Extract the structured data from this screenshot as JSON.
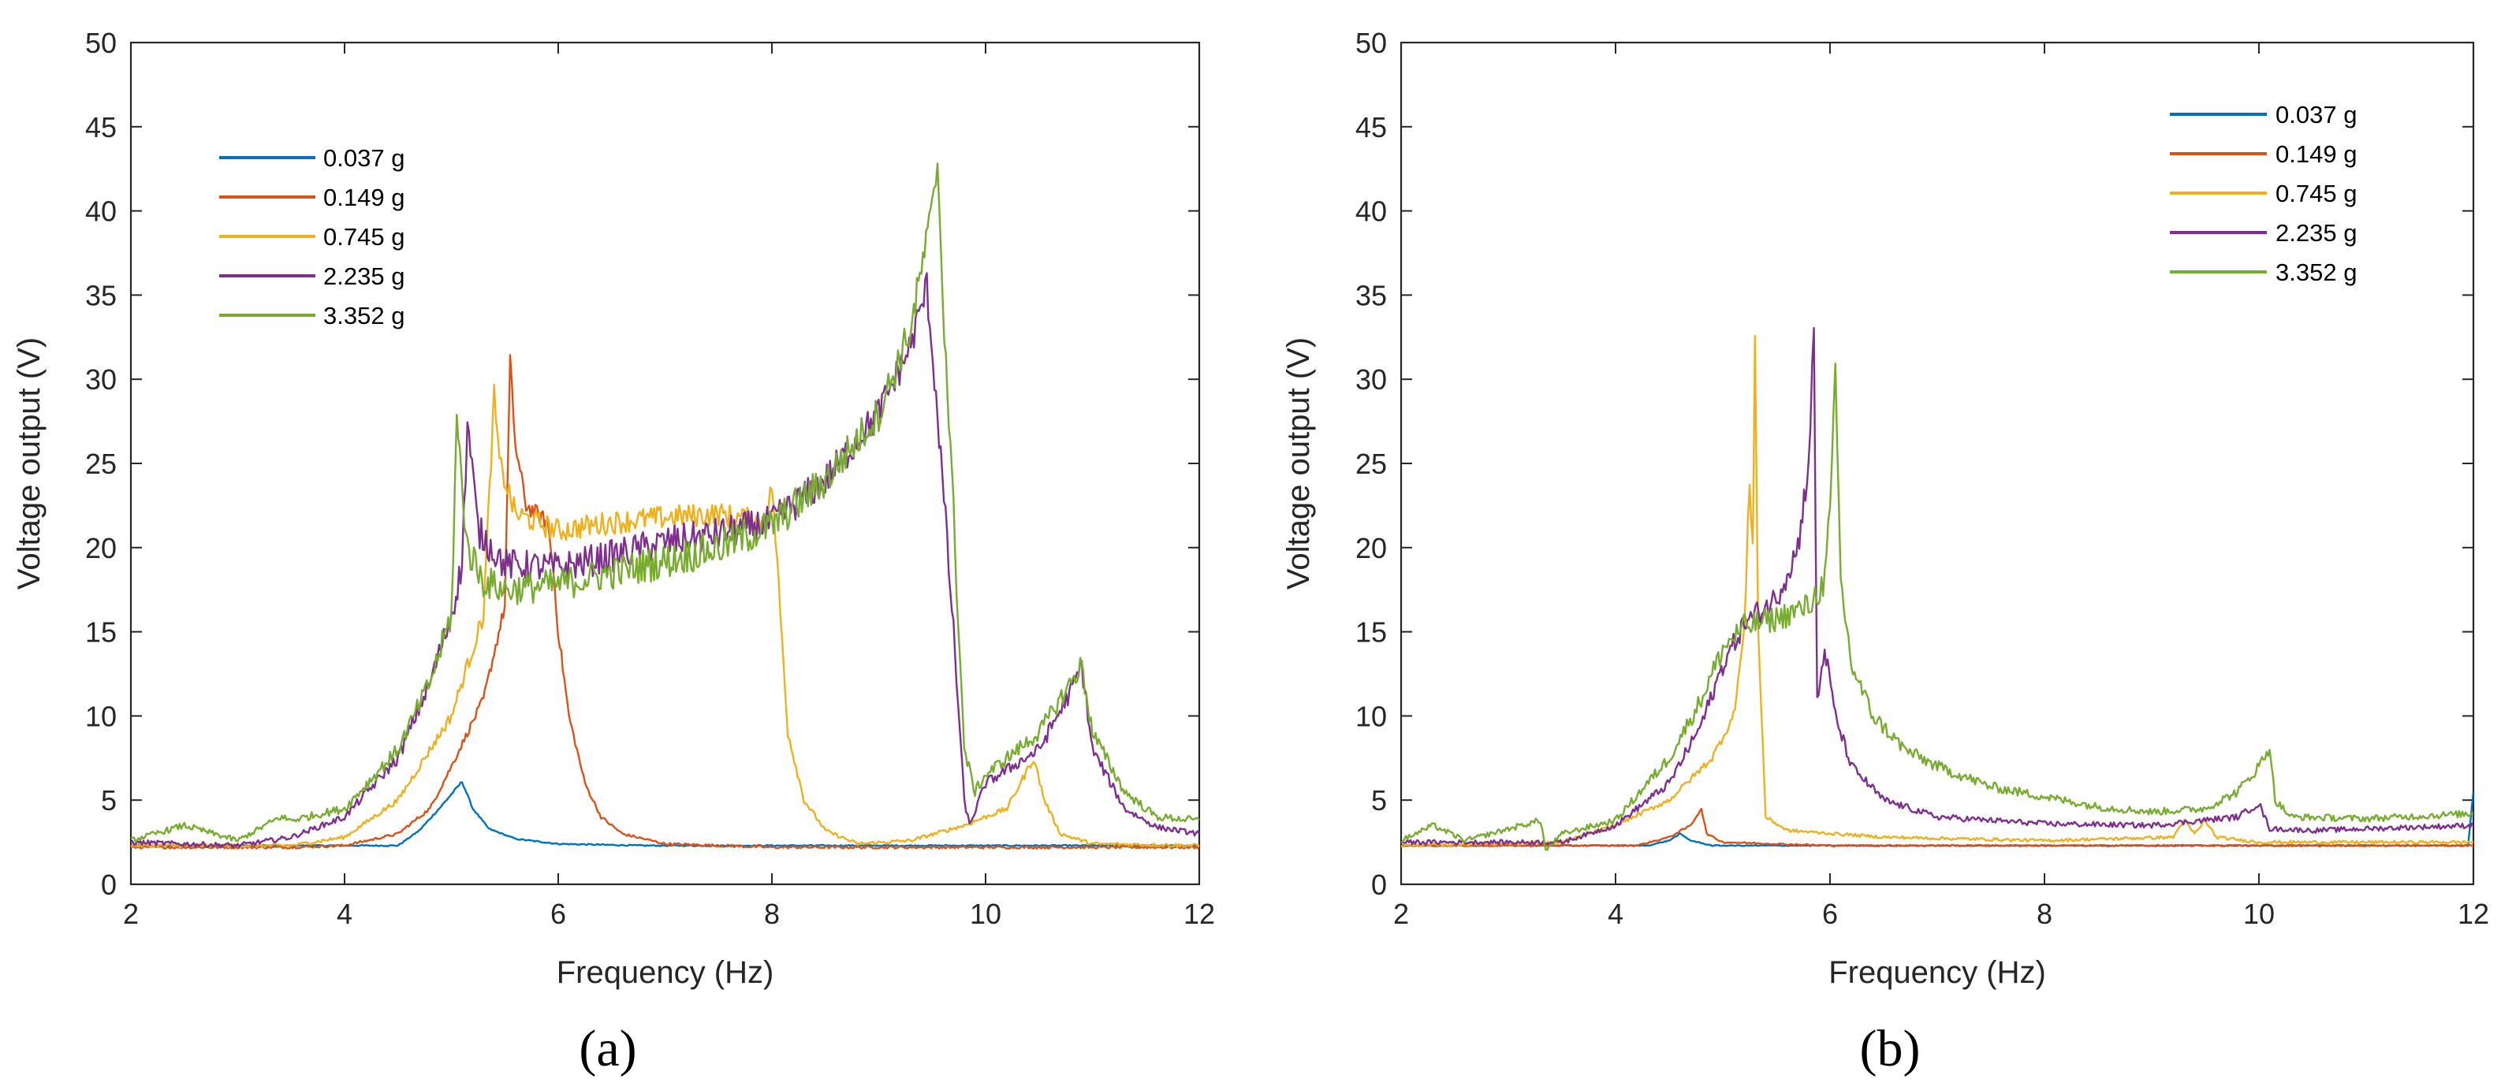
{
  "chart_data": [
    {
      "type": "line",
      "panel_label": "(a)",
      "xlabel": "Frequency (Hz)",
      "ylabel": "Voltage output (V)",
      "xlim": [
        2,
        12
      ],
      "ylim": [
        0,
        50
      ],
      "xticks": [
        2,
        4,
        6,
        8,
        10,
        12
      ],
      "yticks": [
        0,
        5,
        10,
        15,
        20,
        25,
        30,
        35,
        40,
        45,
        50
      ],
      "grid": false,
      "legend_position": "top-left",
      "series": [
        {
          "name": "0.037 g",
          "color": "#0072BD",
          "jitter": 0.25,
          "points": [
            [
              2,
              2.3
            ],
            [
              4.5,
              2.3
            ],
            [
              4.7,
              3.2
            ],
            [
              4.9,
              4.6
            ],
            [
              5.1,
              6.1
            ],
            [
              5.2,
              4.5
            ],
            [
              5.35,
              3.3
            ],
            [
              5.6,
              2.7
            ],
            [
              6.0,
              2.4
            ],
            [
              6.8,
              2.3
            ],
            [
              12,
              2.3
            ]
          ]
        },
        {
          "name": "0.149 g",
          "color": "#D95319",
          "jitter": 0.5,
          "points": [
            [
              2,
              2.2
            ],
            [
              3.5,
              2.2
            ],
            [
              4.0,
              2.3
            ],
            [
              4.5,
              3.0
            ],
            [
              4.8,
              4.5
            ],
            [
              5.0,
              7.0
            ],
            [
              5.3,
              11
            ],
            [
              5.5,
              16.5
            ],
            [
              5.55,
              31
            ],
            [
              5.6,
              26
            ],
            [
              5.7,
              22.5
            ],
            [
              5.8,
              22
            ],
            [
              5.9,
              21.5
            ],
            [
              5.95,
              19
            ],
            [
              6.0,
              15
            ],
            [
              6.1,
              10
            ],
            [
              6.25,
              6.0
            ],
            [
              6.4,
              4.0
            ],
            [
              6.6,
              3.0
            ],
            [
              7.0,
              2.4
            ],
            [
              8,
              2.2
            ],
            [
              12,
              2.2
            ]
          ]
        },
        {
          "name": "0.745 g",
          "color": "#EDB120",
          "jitter": 0.7,
          "points": [
            [
              2,
              2.3
            ],
            [
              3.5,
              2.3
            ],
            [
              4.0,
              2.8
            ],
            [
              4.5,
              5.0
            ],
            [
              5.0,
              10
            ],
            [
              5.3,
              16
            ],
            [
              5.4,
              29
            ],
            [
              5.45,
              25
            ],
            [
              5.6,
              22
            ],
            [
              6.0,
              21
            ],
            [
              6.5,
              21.5
            ],
            [
              7.0,
              21.8
            ],
            [
              7.5,
              22
            ],
            [
              7.95,
              21.5
            ],
            [
              8.0,
              23.8
            ],
            [
              8.05,
              19
            ],
            [
              8.15,
              9
            ],
            [
              8.3,
              5.0
            ],
            [
              8.5,
              3.2
            ],
            [
              8.8,
              2.4
            ],
            [
              9.3,
              2.6
            ],
            [
              9.8,
              3.5
            ],
            [
              10.2,
              4.5
            ],
            [
              10.45,
              7.5
            ],
            [
              10.55,
              5.0
            ],
            [
              10.7,
              3.0
            ],
            [
              11,
              2.4
            ],
            [
              12,
              2.3
            ]
          ]
        },
        {
          "name": "2.235 g",
          "color": "#7E2F8E",
          "jitter": 1.0,
          "points": [
            [
              2,
              2.5
            ],
            [
              3.0,
              2.3
            ],
            [
              3.5,
              2.8
            ],
            [
              4.0,
              4.0
            ],
            [
              4.5,
              7.5
            ],
            [
              4.8,
              12
            ],
            [
              5.0,
              16
            ],
            [
              5.1,
              19
            ],
            [
              5.15,
              27.5
            ],
            [
              5.25,
              21
            ],
            [
              5.5,
              19
            ],
            [
              6.0,
              18.8
            ],
            [
              6.5,
              19.5
            ],
            [
              7.0,
              20.3
            ],
            [
              7.5,
              20.8
            ],
            [
              8.0,
              21.5
            ],
            [
              8.5,
              24
            ],
            [
              9.0,
              28
            ],
            [
              9.3,
              32
            ],
            [
              9.45,
              35.5
            ],
            [
              9.55,
              28
            ],
            [
              9.7,
              15
            ],
            [
              9.8,
              5.0
            ],
            [
              9.85,
              3.5
            ],
            [
              10.0,
              6.0
            ],
            [
              10.5,
              8.0
            ],
            [
              10.8,
              11.5
            ],
            [
              10.9,
              13.0
            ],
            [
              11.0,
              8.0
            ],
            [
              11.3,
              4.5
            ],
            [
              11.6,
              3.4
            ],
            [
              12,
              3.0
            ]
          ]
        },
        {
          "name": "3.352 g",
          "color": "#77AC30",
          "jitter": 1.1,
          "points": [
            [
              2,
              2.6
            ],
            [
              2.5,
              3.5
            ],
            [
              3.0,
              2.6
            ],
            [
              3.4,
              4.0
            ],
            [
              3.5,
              3.8
            ],
            [
              4.0,
              4.5
            ],
            [
              4.5,
              8.0
            ],
            [
              4.8,
              12
            ],
            [
              5.0,
              16
            ],
            [
              5.05,
              27.5
            ],
            [
              5.15,
              20
            ],
            [
              5.3,
              18
            ],
            [
              5.5,
              17.5
            ],
            [
              6.0,
              17.8
            ],
            [
              6.5,
              18.5
            ],
            [
              7.0,
              19.2
            ],
            [
              7.5,
              20
            ],
            [
              8.0,
              21.3
            ],
            [
              8.5,
              24
            ],
            [
              9.0,
              28
            ],
            [
              9.3,
              33
            ],
            [
              9.5,
              40
            ],
            [
              9.55,
              43
            ],
            [
              9.6,
              35
            ],
            [
              9.7,
              22
            ],
            [
              9.8,
              8.0
            ],
            [
              9.9,
              5.5
            ],
            [
              10.0,
              6.5
            ],
            [
              10.5,
              9.0
            ],
            [
              10.8,
              12
            ],
            [
              10.9,
              13.0
            ],
            [
              11.0,
              9.0
            ],
            [
              11.3,
              5.5
            ],
            [
              11.6,
              4.0
            ],
            [
              12,
              3.8
            ]
          ]
        }
      ]
    },
    {
      "type": "line",
      "panel_label": "(b)",
      "xlabel": "Frequency (Hz)",
      "ylabel": "Voltage output (V)",
      "xlim": [
        2,
        12
      ],
      "ylim": [
        0,
        50
      ],
      "xticks": [
        2,
        4,
        6,
        8,
        10,
        12
      ],
      "yticks": [
        0,
        5,
        10,
        15,
        20,
        25,
        30,
        35,
        40,
        45,
        50
      ],
      "grid": false,
      "legend_position": "top-right",
      "series": [
        {
          "name": "0.037 g",
          "color": "#0072BD",
          "jitter": 0.2,
          "points": [
            [
              2,
              2.3
            ],
            [
              4.3,
              2.3
            ],
            [
              4.5,
              2.6
            ],
            [
              4.6,
              3.0
            ],
            [
              4.7,
              2.6
            ],
            [
              4.9,
              2.3
            ],
            [
              11.95,
              2.3
            ],
            [
              12,
              5.5
            ]
          ]
        },
        {
          "name": "0.149 g",
          "color": "#D95319",
          "jitter": 0.3,
          "points": [
            [
              2,
              2.3
            ],
            [
              4.2,
              2.3
            ],
            [
              4.5,
              2.8
            ],
            [
              4.7,
              3.5
            ],
            [
              4.8,
              4.5
            ],
            [
              4.85,
              3.0
            ],
            [
              5.0,
              2.5
            ],
            [
              6,
              2.3
            ],
            [
              12,
              2.3
            ]
          ]
        },
        {
          "name": "0.745 g",
          "color": "#EDB120",
          "jitter": 0.6,
          "points": [
            [
              2,
              2.3
            ],
            [
              3.5,
              2.5
            ],
            [
              4.0,
              3.5
            ],
            [
              4.5,
              5.0
            ],
            [
              4.9,
              7.5
            ],
            [
              5.1,
              10
            ],
            [
              5.2,
              15
            ],
            [
              5.25,
              24
            ],
            [
              5.28,
              20
            ],
            [
              5.3,
              32.8
            ],
            [
              5.33,
              15
            ],
            [
              5.4,
              4.0
            ],
            [
              5.6,
              3.2
            ],
            [
              6.5,
              2.8
            ],
            [
              8.0,
              2.6
            ],
            [
              9.2,
              2.8
            ],
            [
              9.3,
              3.8
            ],
            [
              9.4,
              3.0
            ],
            [
              9.5,
              3.8
            ],
            [
              9.6,
              2.8
            ],
            [
              10,
              2.5
            ],
            [
              12,
              2.5
            ]
          ]
        },
        {
          "name": "2.235 g",
          "color": "#7E2F8E",
          "jitter": 0.9,
          "points": [
            [
              2,
              2.5
            ],
            [
              3.5,
              2.5
            ],
            [
              4.0,
              3.5
            ],
            [
              4.5,
              6.0
            ],
            [
              4.8,
              9.5
            ],
            [
              5.0,
              13
            ],
            [
              5.2,
              15.5
            ],
            [
              5.5,
              17
            ],
            [
              5.7,
              20
            ],
            [
              5.8,
              25
            ],
            [
              5.85,
              32.7
            ],
            [
              5.88,
              10.8
            ],
            [
              5.95,
              14
            ],
            [
              6.05,
              10
            ],
            [
              6.2,
              7.0
            ],
            [
              6.5,
              5.0
            ],
            [
              7.0,
              4.0
            ],
            [
              8.0,
              3.6
            ],
            [
              9.0,
              3.5
            ],
            [
              9.8,
              4.0
            ],
            [
              10.0,
              4.8
            ],
            [
              10.1,
              3.3
            ],
            [
              10.5,
              3.2
            ],
            [
              12,
              3.5
            ]
          ]
        },
        {
          "name": "3.352 g",
          "color": "#77AC30",
          "jitter": 1.0,
          "points": [
            [
              2,
              2.6
            ],
            [
              2.3,
              3.5
            ],
            [
              2.6,
              2.6
            ],
            [
              3.3,
              3.8
            ],
            [
              3.35,
              2.0
            ],
            [
              3.5,
              3.0
            ],
            [
              4.0,
              3.8
            ],
            [
              4.5,
              7.5
            ],
            [
              4.8,
              11
            ],
            [
              5.0,
              14
            ],
            [
              5.2,
              15.3
            ],
            [
              5.5,
              15.8
            ],
            [
              5.8,
              16.5
            ],
            [
              5.95,
              18
            ],
            [
              6.0,
              22
            ],
            [
              6.05,
              30
            ],
            [
              6.1,
              18
            ],
            [
              6.2,
              13
            ],
            [
              6.4,
              10
            ],
            [
              6.7,
              8.0
            ],
            [
              7.0,
              7.0
            ],
            [
              7.5,
              5.8
            ],
            [
              8.0,
              5.2
            ],
            [
              8.5,
              4.6
            ],
            [
              9.0,
              4.3
            ],
            [
              9.5,
              4.5
            ],
            [
              9.8,
              5.5
            ],
            [
              10.0,
              7.0
            ],
            [
              10.1,
              8.2
            ],
            [
              10.15,
              5.0
            ],
            [
              10.3,
              4.0
            ],
            [
              11,
              3.9
            ],
            [
              12,
              4.2
            ]
          ]
        }
      ]
    }
  ]
}
